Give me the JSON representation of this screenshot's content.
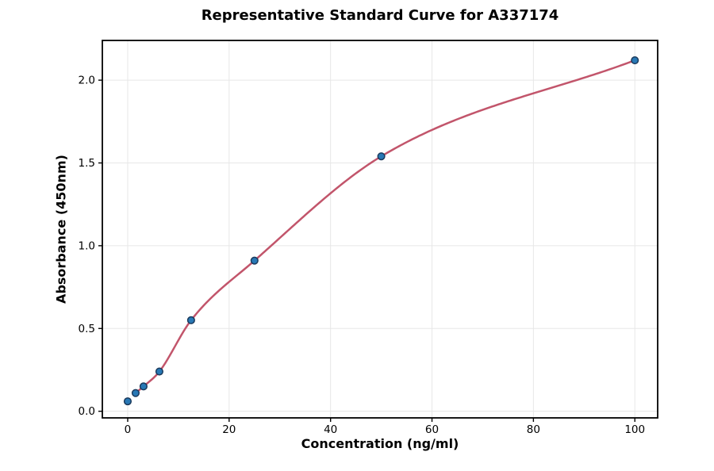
{
  "chart_data": {
    "type": "scatter",
    "title": "Representative Standard Curve for A337174",
    "xlabel": "Concentration (ng/ml)",
    "ylabel": "Absorbance (450nm)",
    "points": {
      "x": [
        0,
        1.56,
        3.12,
        6.25,
        12.5,
        25,
        50,
        100
      ],
      "y": [
        0.06,
        0.11,
        0.15,
        0.24,
        0.55,
        0.91,
        1.54,
        2.12
      ]
    },
    "fit_curve": {
      "name": "fitted-standard-curve",
      "start_index": 1,
      "x_range": [
        1.56,
        100
      ]
    },
    "xlim": [
      -5,
      104.5
    ],
    "ylim": [
      -0.04,
      2.24
    ],
    "xticks": [
      0,
      20,
      40,
      60,
      80,
      100
    ],
    "yticks": [
      0,
      0.5,
      1,
      1.5,
      2
    ],
    "xtick_labels": [
      "0",
      "20",
      "40",
      "60",
      "80",
      "100"
    ],
    "ytick_labels": [
      "0.0",
      "0.5",
      "1.0",
      "1.5",
      "2.0"
    ],
    "grid": true,
    "legend": "none",
    "colors": {
      "marker_fill": "#2878b5",
      "marker_edge": "#1b3a5c",
      "curve": "#c2556b",
      "grid": "#e7e7e7",
      "frame": "#000000",
      "text": "#000000",
      "background": "#ffffff"
    }
  }
}
